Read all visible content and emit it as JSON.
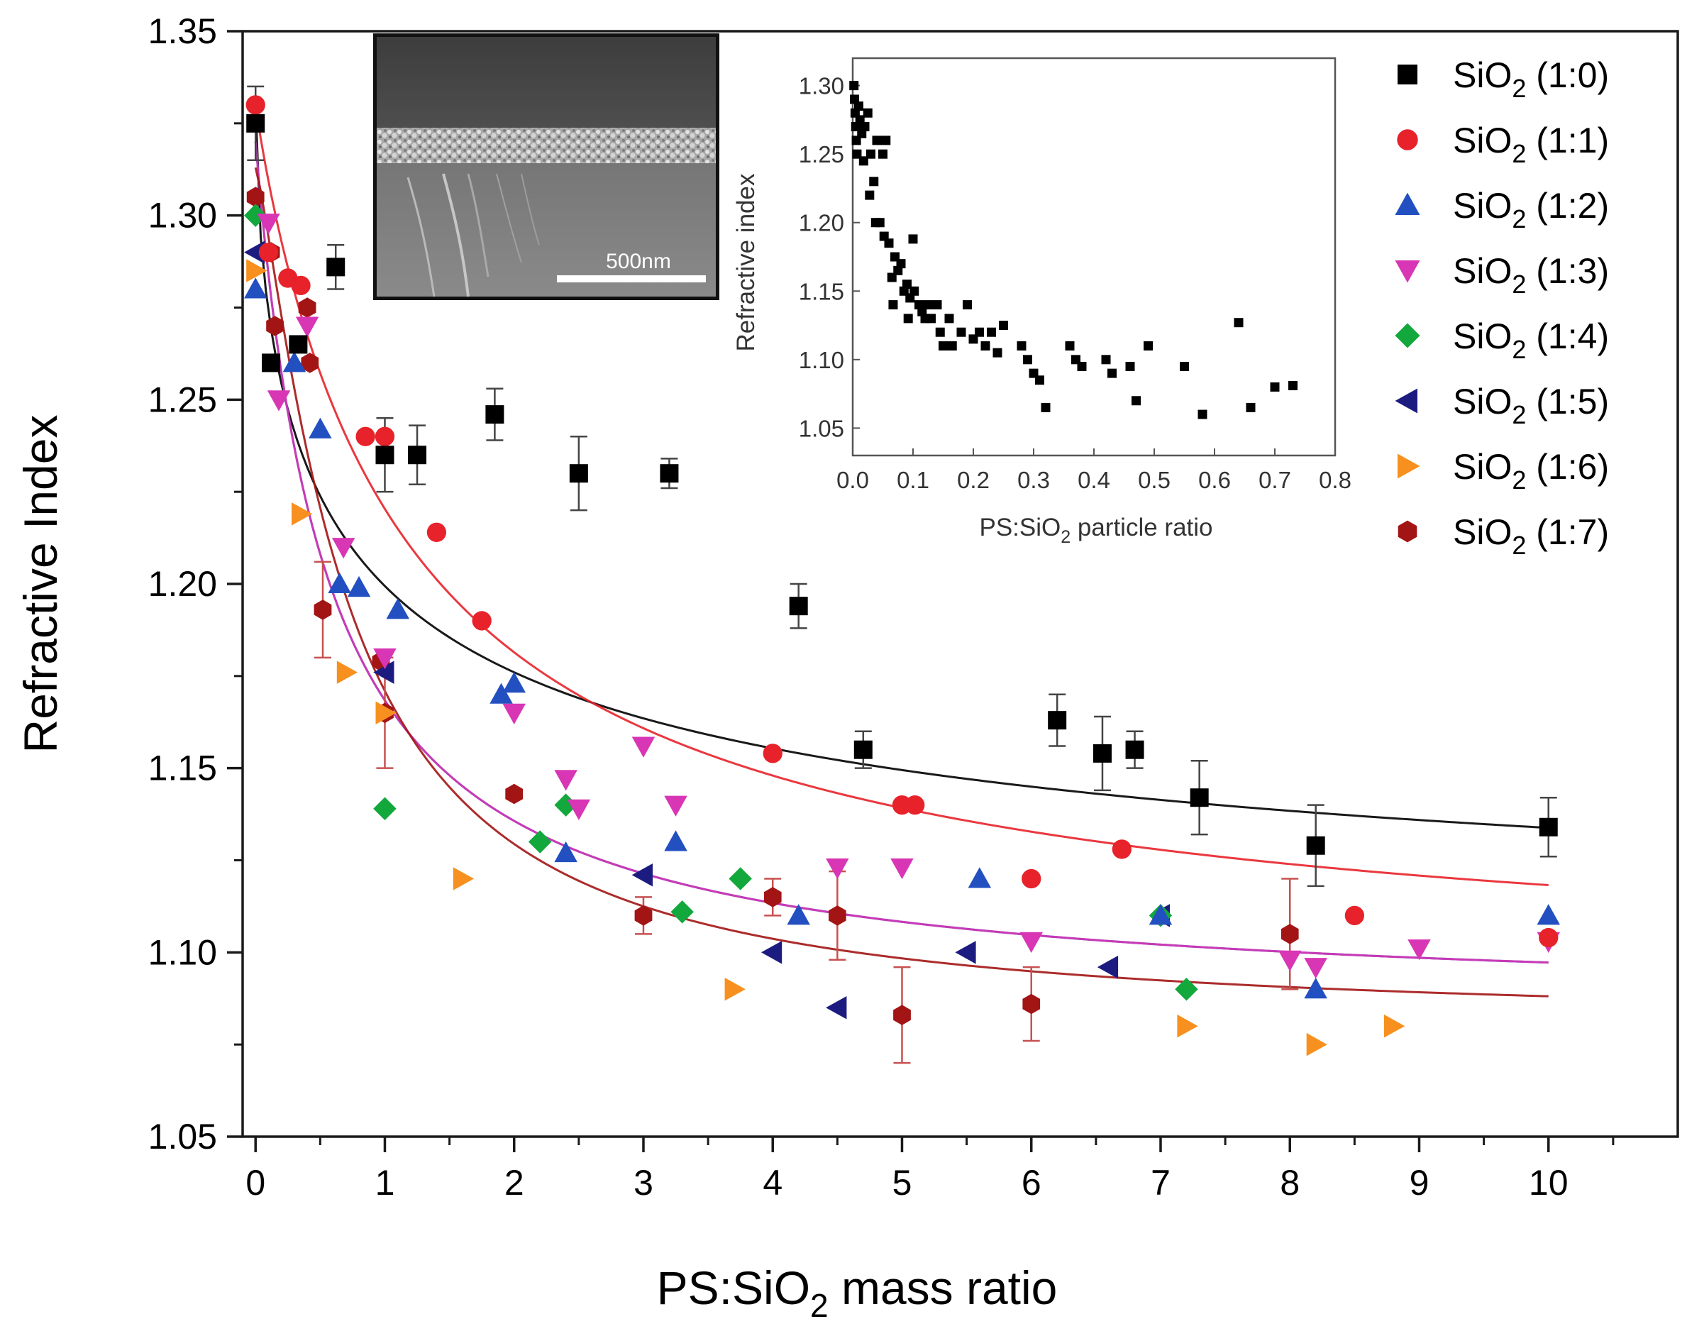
{
  "chart_data": {
    "type": "scatter",
    "xlabel": "PS:SiO₂ mass ratio",
    "ylabel": "Refractive Index",
    "xlim": [
      -0.1,
      11
    ],
    "ylim": [
      1.05,
      1.35
    ],
    "xticks": [
      0,
      1,
      2,
      3,
      4,
      5,
      6,
      7,
      8,
      9,
      10
    ],
    "yticks": [
      1.05,
      1.1,
      1.15,
      1.2,
      1.25,
      1.3,
      1.35
    ],
    "legend_position": "top-right",
    "series": [
      {
        "name": "SiO₂ (1:0)",
        "base": "SiO",
        "sub": "2",
        "ratio": "(1:0)",
        "color": "#000000",
        "marker": "square",
        "x": [
          0.0,
          0.12,
          0.33,
          0.62,
          1.0,
          1.25,
          1.85,
          2.5,
          3.2,
          4.2,
          4.7,
          6.2,
          6.55,
          6.8,
          7.3,
          8.2,
          10.0
        ],
        "y": [
          1.325,
          1.26,
          1.265,
          1.286,
          1.235,
          1.235,
          1.246,
          1.23,
          1.23,
          1.194,
          1.155,
          1.163,
          1.154,
          1.155,
          1.142,
          1.129,
          1.134
        ],
        "err": [
          0.01,
          0.0,
          0.0,
          0.006,
          0.01,
          0.008,
          0.007,
          0.01,
          0.004,
          0.006,
          0.005,
          0.007,
          0.01,
          0.005,
          0.01,
          0.011,
          0.008
        ],
        "fit": {
          "a": 1.094,
          "b": 0.236,
          "c": 0.7,
          "p": 0.6
        }
      },
      {
        "name": "SiO₂ (1:1)",
        "base": "SiO",
        "sub": "2",
        "ratio": "(1:1)",
        "color": "#e8222a",
        "marker": "circle",
        "x": [
          0.0,
          0.1,
          0.25,
          0.35,
          0.85,
          1.0,
          1.4,
          1.75,
          4.0,
          5.0,
          5.1,
          6.0,
          6.7,
          8.5,
          10.0
        ],
        "y": [
          1.33,
          1.29,
          1.283,
          1.281,
          1.24,
          1.24,
          1.214,
          1.19,
          1.154,
          1.14,
          1.14,
          1.12,
          1.128,
          1.11,
          1.104
        ],
        "fit": {
          "a": 1.09,
          "b": 0.24,
          "c": 1.2,
          "p": 0.95
        }
      },
      {
        "name": "SiO₂ (1:2)",
        "base": "SiO",
        "sub": "2",
        "ratio": "(1:2)",
        "color": "#2350c0",
        "marker": "triangle-up",
        "x": [
          0.0,
          0.3,
          0.5,
          0.65,
          0.8,
          1.1,
          1.9,
          2.0,
          2.4,
          3.25,
          4.2,
          5.6,
          7.0,
          8.2,
          10.0
        ],
        "y": [
          1.28,
          1.26,
          1.242,
          1.2,
          1.199,
          1.193,
          1.17,
          1.173,
          1.127,
          1.13,
          1.11,
          1.12,
          1.11,
          1.09,
          1.11
        ],
        "fit": {
          "a": 1.085,
          "b": 0.235,
          "c": 0.55,
          "p": 1.0
        }
      },
      {
        "name": "SiO₂ (1:3)",
        "base": "SiO",
        "sub": "2",
        "ratio": "(1:3)",
        "color": "#d836b4",
        "marker": "triangle-down",
        "x": [
          0.1,
          0.18,
          0.4,
          0.68,
          1.0,
          2.0,
          2.4,
          2.5,
          3.0,
          3.25,
          4.5,
          5.0,
          6.0,
          8.0,
          8.2,
          9.0,
          10.0
        ],
        "y": [
          1.298,
          1.25,
          1.27,
          1.21,
          1.18,
          1.165,
          1.147,
          1.139,
          1.156,
          1.14,
          1.123,
          1.123,
          1.103,
          1.098,
          1.096,
          1.101,
          1.103
        ],
        "fit": {
          "a": 1.085,
          "b": 0.235,
          "c": 0.55,
          "p": 1.0
        }
      },
      {
        "name": "SiO₂ (1:4)",
        "base": "SiO",
        "sub": "2",
        "ratio": "(1:4)",
        "color": "#12a83c",
        "marker": "diamond",
        "x": [
          0.0,
          1.0,
          2.2,
          2.4,
          3.3,
          3.75,
          7.0,
          7.2
        ],
        "y": [
          1.3,
          1.139,
          1.13,
          1.14,
          1.111,
          1.12,
          1.11,
          1.09
        ],
        "fit": null
      },
      {
        "name": "SiO₂ (1:5)",
        "base": "SiO",
        "sub": "2",
        "ratio": "(1:5)",
        "color": "#1c1c80",
        "marker": "triangle-left",
        "x": [
          0.0,
          1.0,
          3.0,
          4.0,
          4.5,
          5.5,
          6.6,
          7.0
        ],
        "y": [
          1.29,
          1.176,
          1.121,
          1.1,
          1.085,
          1.1,
          1.096,
          1.11
        ],
        "fit": null
      },
      {
        "name": "SiO₂ (1:6)",
        "base": "SiO",
        "sub": "2",
        "ratio": "(1:6)",
        "color": "#f7901e",
        "marker": "triangle-right",
        "x": [
          0.0,
          0.35,
          0.7,
          1.0,
          1.6,
          3.7,
          7.2,
          8.2,
          8.8
        ],
        "y": [
          1.285,
          1.219,
          1.176,
          1.165,
          1.12,
          1.09,
          1.08,
          1.075,
          1.08
        ],
        "fit": null
      },
      {
        "name": "SiO₂ (1:7)",
        "base": "SiO",
        "sub": "2",
        "ratio": "(1:7)",
        "color": "#a31515",
        "marker": "hexagon",
        "x": [
          0.0,
          0.12,
          0.15,
          0.4,
          0.42,
          0.52,
          0.97,
          1.0,
          2.0,
          3.0,
          4.0,
          4.5,
          5.0,
          6.0,
          8.0
        ],
        "y": [
          1.305,
          1.29,
          1.27,
          1.275,
          1.26,
          1.193,
          1.179,
          1.165,
          1.143,
          1.11,
          1.115,
          1.11,
          1.083,
          1.086,
          1.105
        ],
        "err": [
          0.0,
          0.0,
          0.0,
          0.0,
          0.0,
          0.013,
          0.0,
          0.015,
          0.0,
          0.005,
          0.005,
          0.012,
          0.013,
          0.01,
          0.015
        ],
        "fit": {
          "a": 1.08,
          "b": 0.233,
          "c": 0.7,
          "p": 1.25
        }
      }
    ],
    "inset": {
      "type": "scatter",
      "xlabel_pre": "PS:SiO",
      "xlabel_sub": "2",
      "xlabel_post": " particle ratio",
      "ylabel": "Refractive index",
      "xlim": [
        0.0,
        0.8
      ],
      "ylim": [
        1.03,
        1.32
      ],
      "xticks": [
        "0.0",
        "0.1",
        "0.2",
        "0.3",
        "0.4",
        "0.5",
        "0.6",
        "0.7",
        "0.8"
      ],
      "yticks": [
        "1.05",
        "1.10",
        "1.15",
        "1.20",
        "1.25",
        "1.30"
      ],
      "color": "#000000",
      "points": [
        [
          0.002,
          1.3
        ],
        [
          0.003,
          1.29
        ],
        [
          0.004,
          1.28
        ],
        [
          0.005,
          1.27
        ],
        [
          0.006,
          1.26
        ],
        [
          0.007,
          1.25
        ],
        [
          0.01,
          1.285
        ],
        [
          0.012,
          1.275
        ],
        [
          0.015,
          1.265
        ],
        [
          0.018,
          1.245
        ],
        [
          0.02,
          1.27
        ],
        [
          0.025,
          1.28
        ],
        [
          0.028,
          1.22
        ],
        [
          0.03,
          1.25
        ],
        [
          0.035,
          1.23
        ],
        [
          0.038,
          1.2
        ],
        [
          0.04,
          1.26
        ],
        [
          0.045,
          1.2
        ],
        [
          0.05,
          1.25
        ],
        [
          0.052,
          1.19
        ],
        [
          0.055,
          1.26
        ],
        [
          0.06,
          1.185
        ],
        [
          0.065,
          1.16
        ],
        [
          0.067,
          1.14
        ],
        [
          0.07,
          1.175
        ],
        [
          0.075,
          1.165
        ],
        [
          0.08,
          1.17
        ],
        [
          0.085,
          1.15
        ],
        [
          0.09,
          1.155
        ],
        [
          0.092,
          1.13
        ],
        [
          0.095,
          1.145
        ],
        [
          0.1,
          1.188
        ],
        [
          0.102,
          1.15
        ],
        [
          0.11,
          1.14
        ],
        [
          0.115,
          1.135
        ],
        [
          0.12,
          1.13
        ],
        [
          0.125,
          1.14
        ],
        [
          0.13,
          1.13
        ],
        [
          0.14,
          1.14
        ],
        [
          0.145,
          1.12
        ],
        [
          0.15,
          1.11
        ],
        [
          0.16,
          1.13
        ],
        [
          0.165,
          1.11
        ],
        [
          0.18,
          1.12
        ],
        [
          0.19,
          1.14
        ],
        [
          0.2,
          1.115
        ],
        [
          0.21,
          1.12
        ],
        [
          0.22,
          1.11
        ],
        [
          0.23,
          1.12
        ],
        [
          0.24,
          1.105
        ],
        [
          0.25,
          1.125
        ],
        [
          0.28,
          1.11
        ],
        [
          0.29,
          1.1
        ],
        [
          0.3,
          1.09
        ],
        [
          0.31,
          1.085
        ],
        [
          0.32,
          1.065
        ],
        [
          0.36,
          1.11
        ],
        [
          0.37,
          1.1
        ],
        [
          0.38,
          1.095
        ],
        [
          0.42,
          1.1
        ],
        [
          0.43,
          1.09
        ],
        [
          0.46,
          1.095
        ],
        [
          0.47,
          1.07
        ],
        [
          0.49,
          1.11
        ],
        [
          0.55,
          1.095
        ],
        [
          0.58,
          1.06
        ],
        [
          0.64,
          1.127
        ],
        [
          0.66,
          1.065
        ],
        [
          0.7,
          1.08
        ],
        [
          0.73,
          1.081
        ]
      ]
    }
  },
  "sem_image": {
    "scale_label": "500nm"
  }
}
